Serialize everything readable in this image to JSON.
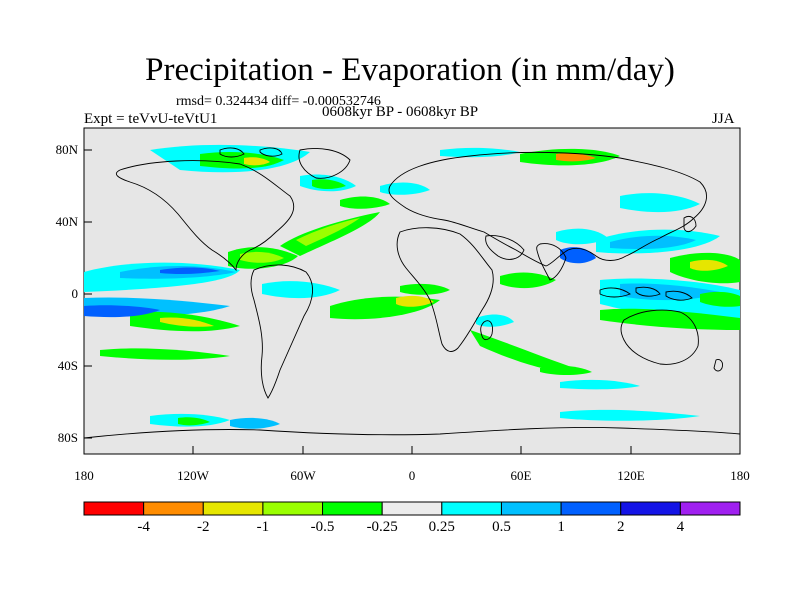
{
  "title": "Precipitation - Evaporation (in mm/day)",
  "stats_line": "rmsd= 0.324434 diff= -0.000532746",
  "experiment_label": "Expt = teVvU-teVtU1",
  "period_label": "0608kyr BP - 0608kyr BP",
  "season_label": "JJA",
  "lat_ticks": [
    "80N",
    "40N",
    "0",
    "40S",
    "80S"
  ],
  "lon_ticks": [
    "180",
    "120W",
    "60W",
    "0",
    "60E",
    "120E",
    "180"
  ],
  "colorbar": {
    "colors": [
      "#ff0000",
      "#ff8c00",
      "#e6e600",
      "#9aff00",
      "#00ff00",
      "#ececec",
      "#00ffff",
      "#00c0ff",
      "#0060ff",
      "#1414e6",
      "#a020f0"
    ],
    "labels": [
      "-4",
      "-2",
      "-1",
      "-0.5",
      "-0.25",
      "0.25",
      "0.5",
      "1",
      "2",
      "4"
    ]
  },
  "colors": {
    "ocean_background": "#e6e6e6",
    "coastline": "#000000"
  }
}
